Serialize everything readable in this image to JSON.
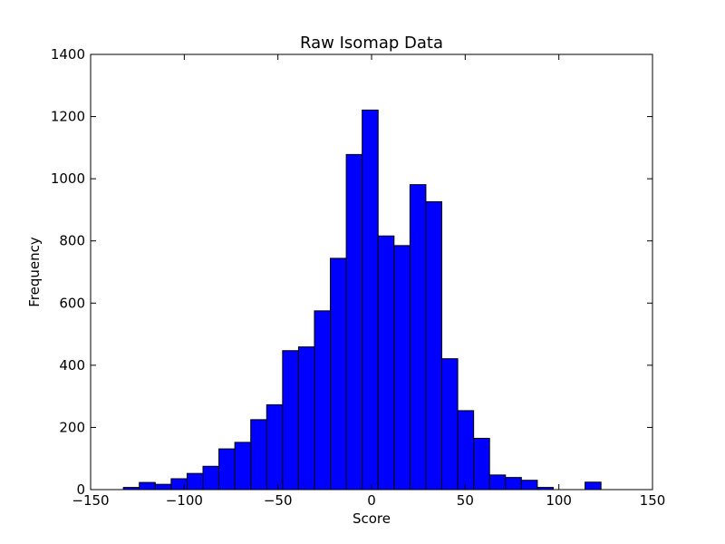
{
  "chart_data": {
    "type": "bar",
    "title": "Raw Isomap Data",
    "xlabel": "Score",
    "ylabel": "Frequency",
    "xlim": [
      -150,
      150
    ],
    "ylim": [
      0,
      1400
    ],
    "x_ticks": [
      -150,
      -100,
      -50,
      0,
      50,
      100,
      150
    ],
    "x_tick_labels": [
      "−150",
      "−100",
      "−50",
      "0",
      "50",
      "100",
      "150"
    ],
    "y_ticks": [
      0,
      200,
      400,
      600,
      800,
      1000,
      1200,
      1400
    ],
    "y_tick_labels": [
      "0",
      "200",
      "400",
      "600",
      "800",
      "1000",
      "1200",
      "1400"
    ],
    "bin_edges": [
      -132.5,
      -124,
      -115.5,
      -107,
      -98.5,
      -90,
      -81.5,
      -73,
      -64.5,
      -56,
      -47.5,
      -39,
      -30.5,
      -22,
      -13.5,
      -5,
      3.5,
      12,
      20.5,
      29,
      37.5,
      46,
      54.5,
      63,
      71.5,
      80,
      88.5,
      97,
      105.5,
      114,
      122.5
    ],
    "values": [
      7,
      23,
      17,
      35,
      52,
      75,
      131,
      152,
      225,
      273,
      447,
      459,
      575,
      744,
      1078,
      1221,
      816,
      785,
      981,
      926,
      421,
      254,
      165,
      47,
      39,
      30,
      7,
      0,
      0,
      24
    ],
    "grid": false,
    "legend": "none",
    "bar_color": "#0000ff",
    "edge_color": "#000000"
  }
}
